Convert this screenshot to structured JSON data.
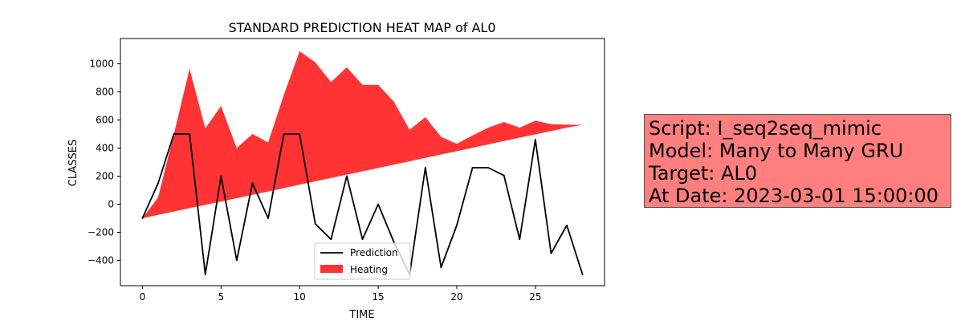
{
  "chart_data": {
    "type": "area",
    "title": "STANDARD PREDICTION HEAT MAP of AL0",
    "xlabel": "TIME",
    "ylabel": "CLASSES",
    "xlim": [
      -1.4,
      29.4
    ],
    "ylim": [
      -580,
      1180
    ],
    "xticks": [
      0,
      5,
      10,
      15,
      20,
      25
    ],
    "yticks": [
      -400,
      -200,
      0,
      200,
      400,
      600,
      800,
      1000
    ],
    "grid": false,
    "legend_position": "bottom-center",
    "series": [
      {
        "name": "Prediction",
        "kind": "line",
        "color": "#000000",
        "x": [
          0,
          1,
          2,
          3,
          4,
          5,
          6,
          7,
          8,
          9,
          10,
          11,
          12,
          13,
          14,
          15,
          16,
          17,
          18,
          19,
          20,
          21,
          22,
          23,
          24,
          25,
          26,
          27,
          28
        ],
        "values": [
          -100,
          150,
          500,
          500,
          -500,
          200,
          -400,
          150,
          -100,
          500,
          500,
          -140,
          -250,
          200,
          -250,
          0,
          -270,
          -500,
          260,
          -450,
          -150,
          260,
          260,
          205,
          -250,
          460,
          -350,
          -150,
          -500
        ]
      },
      {
        "name": "Heating",
        "kind": "fill_between",
        "color": "#ff0000",
        "alpha": 0.8,
        "x": [
          0,
          1,
          2,
          3,
          4,
          5,
          6,
          7,
          8,
          9,
          10,
          11,
          12,
          13,
          14,
          15,
          16,
          17,
          18,
          19,
          20,
          21,
          22,
          23,
          24,
          25,
          26,
          27,
          28
        ],
        "upper": [
          -100,
          50,
          500,
          965,
          540,
          700,
          400,
          500,
          440,
          780,
          1090,
          1010,
          870,
          975,
          850,
          850,
          730,
          530,
          620,
          480,
          430,
          490,
          545,
          585,
          545,
          595,
          570,
          567,
          565
        ],
        "lower": [
          -100,
          -76,
          -52,
          -28,
          -5,
          19,
          43,
          67,
          91,
          115,
          139,
          163,
          187,
          211,
          234,
          258,
          282,
          306,
          330,
          354,
          378,
          402,
          426,
          450,
          474,
          497,
          521,
          545,
          565
        ]
      }
    ]
  },
  "info": {
    "line1": "Script: I_seq2seq_mimic",
    "line2": "Model: Many to Many GRU",
    "line3": "Target: AL0",
    "line4": "At Date: 2023-03-01 15:00:00",
    "background": "#ff7f7f"
  }
}
